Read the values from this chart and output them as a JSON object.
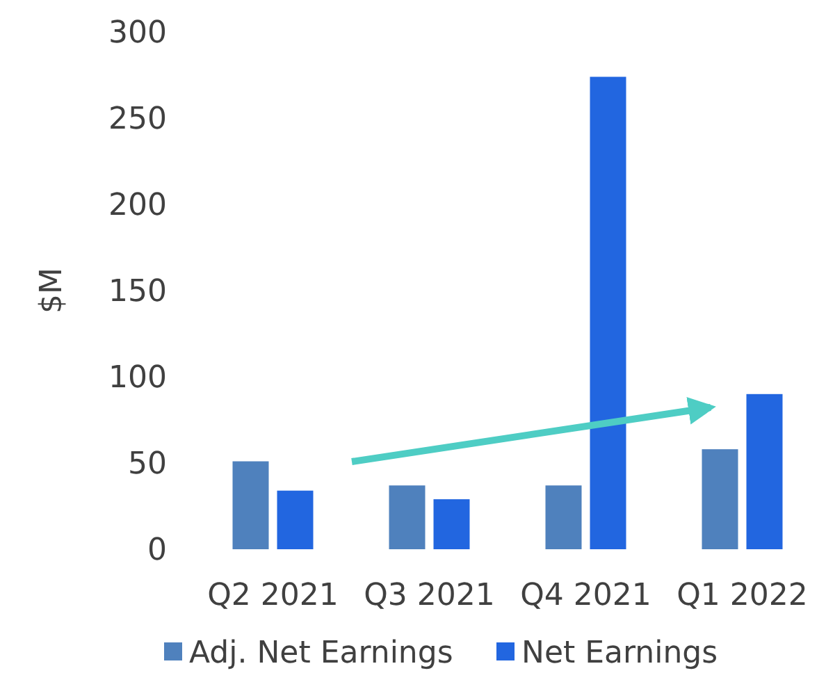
{
  "chart_data": {
    "type": "bar",
    "ylabel": "$M",
    "categories": [
      "Q2 2021",
      "Q3 2021",
      "Q4 2021",
      "Q1 2022"
    ],
    "series": [
      {
        "name": "Adj. Net Earnings",
        "color": "#4f81bd",
        "values": [
          51,
          37,
          37,
          58
        ]
      },
      {
        "name": "Net Earnings",
        "color": "#2266e0",
        "values": [
          34,
          29,
          274,
          90
        ]
      }
    ],
    "ylim": [
      0,
      300
    ],
    "yticks": [
      0,
      50,
      100,
      150,
      200,
      250,
      300
    ],
    "grid": false,
    "legend": "bottom"
  }
}
